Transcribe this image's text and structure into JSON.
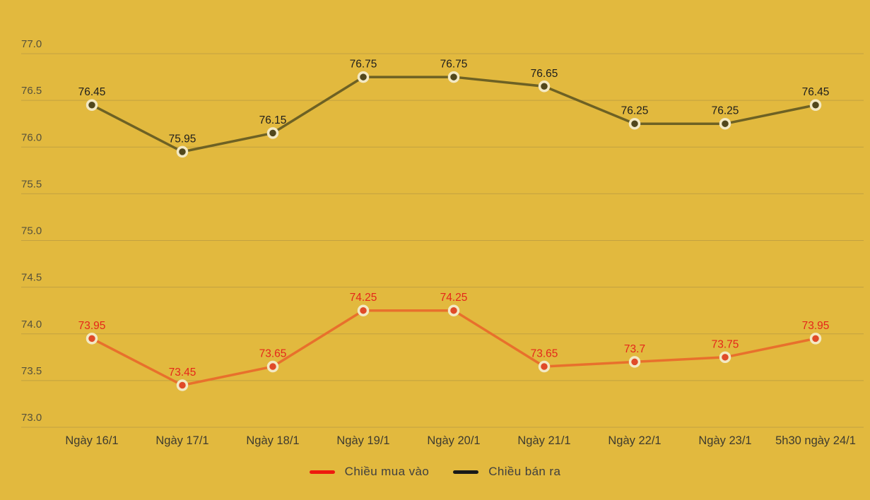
{
  "chart_data": {
    "type": "line",
    "categories": [
      "Ngày 16/1",
      "Ngày 17/1",
      "Ngày 18/1",
      "Ngày 19/1",
      "Ngày 20/1",
      "Ngày 21/1",
      "Ngày 22/1",
      "Ngày 23/1",
      "5h30 ngày 24/1"
    ],
    "series": [
      {
        "name": "Chiều mua vào",
        "values": [
          73.95,
          73.45,
          73.65,
          74.25,
          74.25,
          73.65,
          73.7,
          73.75,
          73.95
        ],
        "line_color": "#e8702c",
        "marker_color": "#e04a28",
        "label_color": "#e5261a",
        "legend_color": "#ee1a0e"
      },
      {
        "name": "Chiều bán ra",
        "values": [
          76.45,
          75.95,
          76.15,
          76.75,
          76.75,
          76.65,
          76.25,
          76.25,
          76.45
        ],
        "line_color": "#6d6124",
        "marker_color": "#51471c",
        "label_color": "#1d1d1d",
        "legend_color": "#191919"
      }
    ],
    "title": "",
    "xlabel": "",
    "ylabel": "",
    "ylim": [
      73.0,
      77.0
    ],
    "yticks": [
      "77.0",
      "76.5",
      "76.0",
      "75.5",
      "75.0",
      "74.5",
      "74.0",
      "73.5",
      "73.0"
    ],
    "grid": true,
    "legend_position": "bottom"
  },
  "colors": {
    "background": "#e2b93e",
    "gridline": "#c2a141",
    "ytick_label": "#56513c",
    "xtick_label": "#3e3b2f",
    "legend_text": "#3f3f3f",
    "marker_halo": "#f3e9c4"
  }
}
